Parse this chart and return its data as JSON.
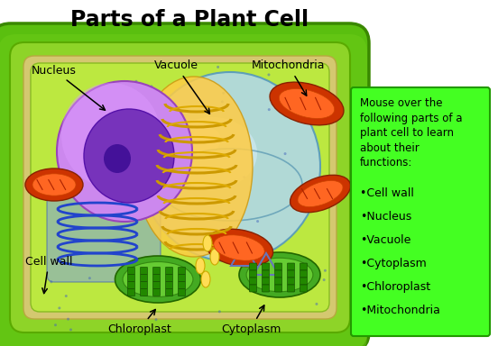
{
  "title": "Parts of a Plant Cell",
  "title_fontsize": 17,
  "title_fontweight": "bold",
  "sidebar_bg": "#44ff22",
  "sidebar_border": "#229900",
  "sidebar_text_header": "Mouse over the\nfollowing parts of a\nplant cell to learn\nabout their\nfunctions:",
  "sidebar_items": [
    "•Cell wall",
    "•Nucleus",
    "•Vacuole",
    "•Cytoplasm",
    "•Chloroplast",
    "•Mitochondria"
  ],
  "sidebar_fontsize": 8.5,
  "label_fontsize": 9,
  "cell_outer_color": "#5abf0f",
  "cell_mid_color": "#78d418",
  "cell_inner_color": "#a8e040",
  "nucleus_outer": "#cc88ee",
  "nucleus_inner": "#7733bb",
  "nucleus_dark": "#441199",
  "vacuole_color": "#b0d8e8",
  "vacuole_edge": "#5599bb",
  "golgi_color": "#ffcc22",
  "golgi_arc_color": "#ddaa00",
  "er_color": "#4466cc",
  "chloro_outer": "#44aa22",
  "chloro_inner": "#228800",
  "mito_outer": "#cc3300",
  "mito_inner": "#ff6622"
}
